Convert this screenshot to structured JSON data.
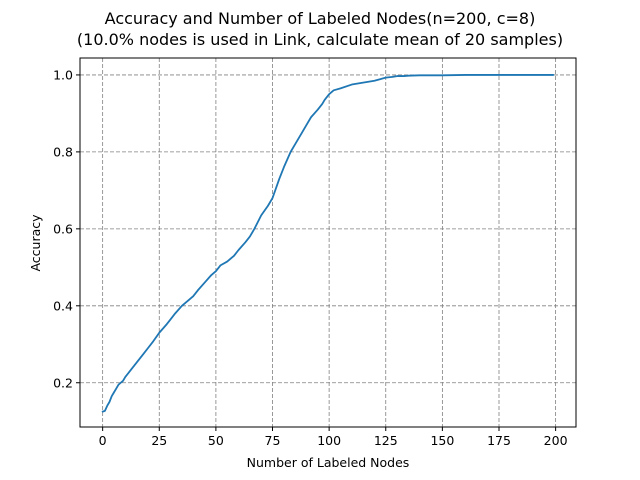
{
  "chart_data": {
    "type": "line",
    "title": "Accuracy and Number of Labeled Nodes(n=200, c=8)",
    "subtitle": "(10.0% nodes is used in Link, calculate mean of 20 samples)",
    "xlabel": "Number of Labeled Nodes",
    "ylabel": "Accuracy",
    "xlim": [
      -10,
      209
    ],
    "ylim": [
      0.085,
      1.044
    ],
    "xticks": [
      0,
      25,
      50,
      75,
      100,
      125,
      150,
      175,
      200
    ],
    "yticks": [
      0.2,
      0.4,
      0.6,
      0.8,
      1.0
    ],
    "ytick_labels": [
      "0.2",
      "0.4",
      "0.6",
      "0.8",
      "1.0"
    ],
    "grid": true,
    "grid_style": "dashed",
    "grid_color": "#808080",
    "series": [
      {
        "color": "#1f77b4",
        "x": [
          0,
          1,
          2,
          3,
          4,
          5,
          6,
          7,
          8,
          9,
          10,
          12,
          14,
          16,
          18,
          20,
          22,
          25,
          28,
          30,
          32,
          35,
          38,
          40,
          42,
          45,
          48,
          50,
          52,
          55,
          57,
          58,
          60,
          63,
          65,
          67,
          70,
          73,
          75,
          78,
          80,
          83,
          85,
          88,
          90,
          92,
          95,
          97,
          98,
          100,
          102,
          105,
          110,
          115,
          120,
          125,
          128,
          130,
          133,
          135,
          140,
          150,
          160,
          175,
          190,
          199
        ],
        "y": [
          0.125,
          0.127,
          0.14,
          0.15,
          0.165,
          0.175,
          0.185,
          0.195,
          0.2,
          0.205,
          0.215,
          0.23,
          0.245,
          0.26,
          0.275,
          0.29,
          0.305,
          0.33,
          0.35,
          0.365,
          0.38,
          0.4,
          0.415,
          0.425,
          0.44,
          0.46,
          0.48,
          0.49,
          0.505,
          0.515,
          0.525,
          0.53,
          0.545,
          0.565,
          0.58,
          0.6,
          0.635,
          0.66,
          0.68,
          0.73,
          0.76,
          0.8,
          0.82,
          0.85,
          0.87,
          0.89,
          0.91,
          0.925,
          0.935,
          0.95,
          0.96,
          0.965,
          0.975,
          0.98,
          0.985,
          0.993,
          0.995,
          0.997,
          0.997,
          0.998,
          0.999,
          0.999,
          1.0,
          1.0,
          1.0,
          1.0
        ]
      }
    ]
  }
}
